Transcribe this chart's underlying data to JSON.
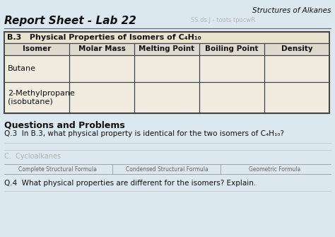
{
  "title_top_right": "Structures of Alkanes",
  "title_main": "Report Sheet - Lab 22",
  "section_header": "B.3   Physical Properties of Isomers of C₄H₁₀",
  "col_headers": [
    "Isomer",
    "Molar Mass",
    "Melting Point",
    "Boiling Point",
    "Density"
  ],
  "row1_label": "Butane",
  "row2_label": "2-Methylpropane\n(isobutane)",
  "q_header": "Questions and Problems",
  "q3_text": "Q.3  In B.3, what physical property is identical for the two isomers of C₄H₁₀?",
  "q4_text": "Q.4  What physical properties are different for the isomers? Explain.",
  "bg_color": "#dce8f0",
  "table_bg": "#f0ede0",
  "header_bg": "#e8e4d0",
  "col_header_bg": "#dedad0",
  "box_color": "#444444",
  "text_color": "#111111",
  "subtitle_text": "SS.ds.J - toots tpocwR",
  "bottom_labels": [
    "Complete Structural Formula",
    "Condensed Structural Formula",
    "Geometric Formula"
  ],
  "c_section": "C.  Cycloalkanes"
}
